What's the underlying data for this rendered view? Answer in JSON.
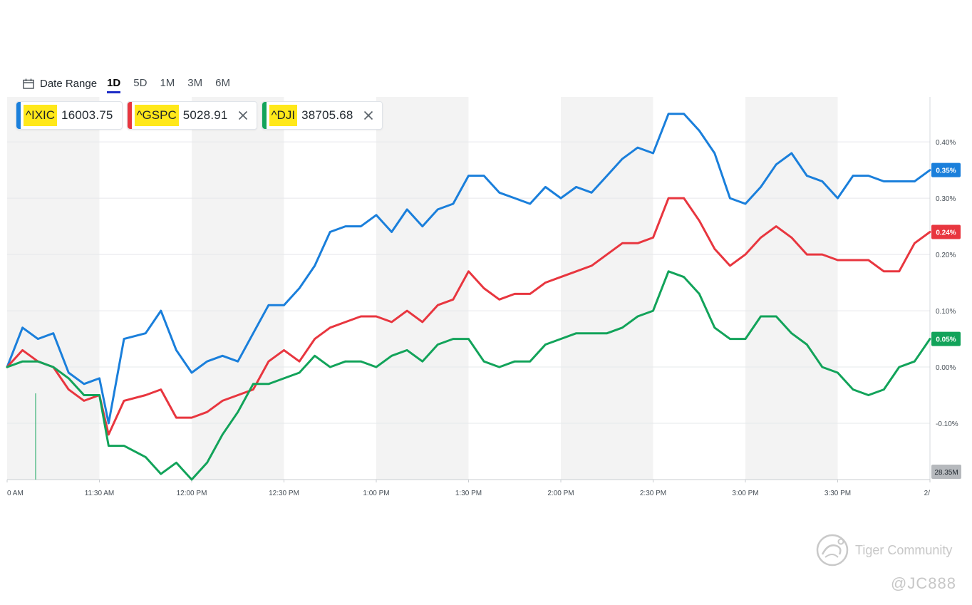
{
  "toolbar": {
    "date_range_label": "Date Range",
    "ranges": [
      "1D",
      "5D",
      "1M",
      "3M",
      "6M"
    ],
    "active_range": "1D"
  },
  "chips": [
    {
      "symbol": "^IXIC",
      "price": "16003.75",
      "color": "#1a7fdb",
      "closable": false
    },
    {
      "symbol": "^GSPC",
      "price": "5028.91",
      "color": "#e8363f",
      "closable": true
    },
    {
      "symbol": "^DJI",
      "price": "38705.68",
      "color": "#12a35a",
      "closable": true
    }
  ],
  "colors": {
    "highlight": "#ffe81a",
    "active_underline": "#1d2cc6",
    "band": "#f3f3f3",
    "volume_badge": "#b6b9bd"
  },
  "chart_data": {
    "type": "line",
    "x_unit": "time of day",
    "x_ticks": [
      "0 AM",
      "11:30 AM",
      "12:00 PM",
      "12:30 PM",
      "1:00 PM",
      "1:30 PM",
      "2:00 PM",
      "2:30 PM",
      "3:00 PM",
      "3:30 PM",
      "2/"
    ],
    "x_range": [
      "11:00",
      "16:00"
    ],
    "y_ticks": [
      "0.40%",
      "0.30%",
      "0.20%",
      "0.10%",
      "0.00%",
      "-0.10%"
    ],
    "ylim": [
      -0.2,
      0.48
    ],
    "grid": true,
    "volume_label": "28.35M",
    "series": [
      {
        "name": "^IXIC",
        "color": "#1a7fdb",
        "last_label": "0.35%",
        "x": [
          "11:00",
          "11:05",
          "11:10",
          "11:15",
          "11:20",
          "11:25",
          "11:30",
          "11:33",
          "11:38",
          "11:45",
          "11:50",
          "11:55",
          "12:00",
          "12:05",
          "12:10",
          "12:15",
          "12:20",
          "12:25",
          "12:30",
          "12:35",
          "12:40",
          "12:45",
          "12:50",
          "12:55",
          "13:00",
          "13:05",
          "13:10",
          "13:15",
          "13:20",
          "13:25",
          "13:30",
          "13:35",
          "13:40",
          "13:45",
          "13:50",
          "13:55",
          "14:00",
          "14:05",
          "14:10",
          "14:15",
          "14:20",
          "14:25",
          "14:30",
          "14:35",
          "14:40",
          "14:45",
          "14:50",
          "14:55",
          "15:00",
          "15:05",
          "15:10",
          "15:15",
          "15:20",
          "15:25",
          "15:30",
          "15:35",
          "15:40",
          "15:45",
          "15:50",
          "15:55",
          "16:00"
        ],
        "y": [
          0.0,
          0.07,
          0.05,
          0.06,
          -0.01,
          -0.03,
          -0.02,
          -0.1,
          0.05,
          0.06,
          0.1,
          0.03,
          -0.01,
          0.01,
          0.02,
          0.01,
          0.06,
          0.11,
          0.11,
          0.14,
          0.18,
          0.24,
          0.25,
          0.25,
          0.27,
          0.24,
          0.28,
          0.25,
          0.28,
          0.29,
          0.34,
          0.34,
          0.31,
          0.3,
          0.29,
          0.32,
          0.3,
          0.32,
          0.31,
          0.34,
          0.37,
          0.39,
          0.38,
          0.45,
          0.45,
          0.42,
          0.38,
          0.3,
          0.29,
          0.32,
          0.36,
          0.38,
          0.34,
          0.33,
          0.3,
          0.34,
          0.34,
          0.33,
          0.33,
          0.33,
          0.35
        ]
      },
      {
        "name": "^GSPC",
        "color": "#e8363f",
        "last_label": "0.24%",
        "x": [
          "11:00",
          "11:05",
          "11:10",
          "11:15",
          "11:20",
          "11:25",
          "11:30",
          "11:33",
          "11:38",
          "11:45",
          "11:50",
          "11:55",
          "12:00",
          "12:05",
          "12:10",
          "12:15",
          "12:20",
          "12:25",
          "12:30",
          "12:35",
          "12:40",
          "12:45",
          "12:50",
          "12:55",
          "13:00",
          "13:05",
          "13:10",
          "13:15",
          "13:20",
          "13:25",
          "13:30",
          "13:35",
          "13:40",
          "13:45",
          "13:50",
          "13:55",
          "14:00",
          "14:05",
          "14:10",
          "14:15",
          "14:20",
          "14:25",
          "14:30",
          "14:35",
          "14:40",
          "14:45",
          "14:50",
          "14:55",
          "15:00",
          "15:05",
          "15:10",
          "15:15",
          "15:20",
          "15:25",
          "15:30",
          "15:35",
          "15:40",
          "15:45",
          "15:50",
          "15:55",
          "16:00"
        ],
        "y": [
          0.0,
          0.03,
          0.01,
          0.0,
          -0.04,
          -0.06,
          -0.05,
          -0.12,
          -0.06,
          -0.05,
          -0.04,
          -0.09,
          -0.09,
          -0.08,
          -0.06,
          -0.05,
          -0.04,
          0.01,
          0.03,
          0.01,
          0.05,
          0.07,
          0.08,
          0.09,
          0.09,
          0.08,
          0.1,
          0.08,
          0.11,
          0.12,
          0.17,
          0.14,
          0.12,
          0.13,
          0.13,
          0.15,
          0.16,
          0.17,
          0.18,
          0.2,
          0.22,
          0.22,
          0.23,
          0.3,
          0.3,
          0.26,
          0.21,
          0.18,
          0.2,
          0.23,
          0.25,
          0.23,
          0.2,
          0.2,
          0.19,
          0.19,
          0.19,
          0.17,
          0.17,
          0.22,
          0.24
        ]
      },
      {
        "name": "^DJI",
        "color": "#12a35a",
        "last_label": "0.05%",
        "x": [
          "11:00",
          "11:05",
          "11:10",
          "11:15",
          "11:20",
          "11:25",
          "11:30",
          "11:33",
          "11:38",
          "11:45",
          "11:50",
          "11:55",
          "12:00",
          "12:05",
          "12:10",
          "12:15",
          "12:20",
          "12:25",
          "12:30",
          "12:35",
          "12:40",
          "12:45",
          "12:50",
          "12:55",
          "13:00",
          "13:05",
          "13:10",
          "13:15",
          "13:20",
          "13:25",
          "13:30",
          "13:35",
          "13:40",
          "13:45",
          "13:50",
          "13:55",
          "14:00",
          "14:05",
          "14:10",
          "14:15",
          "14:20",
          "14:25",
          "14:30",
          "14:35",
          "14:40",
          "14:45",
          "14:50",
          "14:55",
          "15:00",
          "15:05",
          "15:10",
          "15:15",
          "15:20",
          "15:25",
          "15:30",
          "15:35",
          "15:40",
          "15:45",
          "15:50",
          "15:55",
          "16:00"
        ],
        "y": [
          0.0,
          0.01,
          0.01,
          0.0,
          -0.02,
          -0.05,
          -0.05,
          -0.14,
          -0.14,
          -0.16,
          -0.19,
          -0.17,
          -0.2,
          -0.17,
          -0.12,
          -0.08,
          -0.03,
          -0.03,
          -0.02,
          -0.01,
          0.02,
          0.0,
          0.01,
          0.01,
          0.0,
          0.02,
          0.03,
          0.01,
          0.04,
          0.05,
          0.05,
          0.01,
          0.0,
          0.01,
          0.01,
          0.04,
          0.05,
          0.06,
          0.06,
          0.06,
          0.07,
          0.09,
          0.1,
          0.17,
          0.16,
          0.13,
          0.07,
          0.05,
          0.05,
          0.09,
          0.09,
          0.06,
          0.04,
          0.0,
          -0.01,
          -0.04,
          -0.05,
          -0.04,
          0.0,
          0.01,
          0.05
        ]
      }
    ]
  },
  "watermark": {
    "brand": "Tiger Community",
    "handle": "@JC888"
  }
}
